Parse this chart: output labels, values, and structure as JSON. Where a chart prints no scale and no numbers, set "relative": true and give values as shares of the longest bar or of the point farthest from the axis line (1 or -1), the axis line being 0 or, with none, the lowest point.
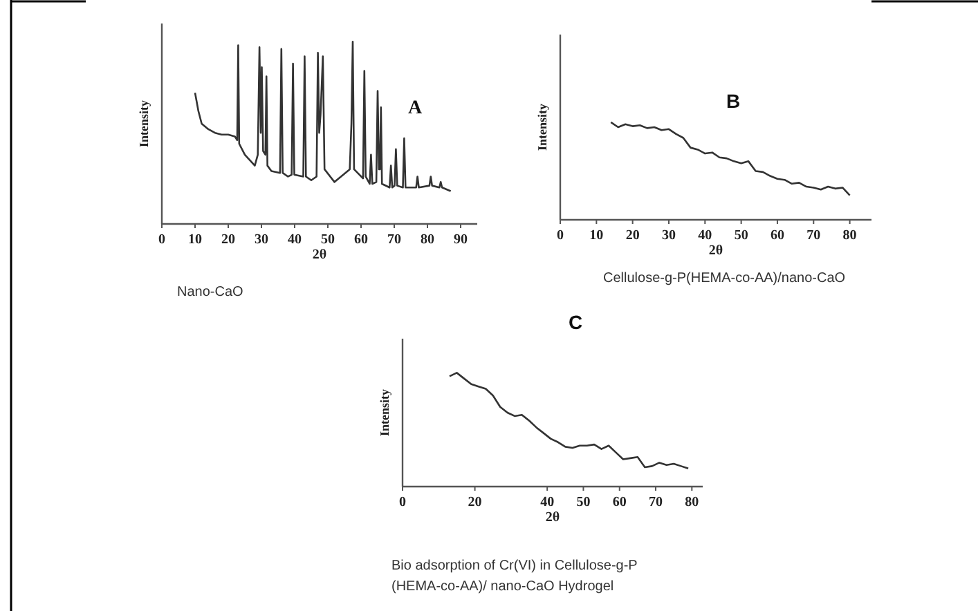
{
  "chart_data": [
    {
      "type": "line",
      "relative": true,
      "xlabel": "2θ",
      "ylabel": "Intensity",
      "xlim": [
        0,
        95
      ],
      "xticks": [
        0,
        10,
        20,
        30,
        40,
        50,
        60,
        70,
        80,
        90
      ],
      "annotations": [
        "A",
        "Nano-CaO"
      ],
      "series": [
        {
          "color": "#333333",
          "x": [
            10,
            11,
            12,
            14,
            16,
            18,
            20,
            22,
            22.7,
            23,
            23.3,
            25,
            27,
            28,
            28.9,
            29.4,
            29.8,
            30.1,
            30.5,
            31.2,
            31.5,
            31.8,
            33,
            35.6,
            36,
            36.4,
            38,
            39.1,
            39.5,
            39.9,
            42.6,
            43,
            43.4,
            45,
            46.6,
            47,
            47.4,
            47.8,
            48.5,
            49,
            52,
            56.6,
            57.1,
            57.5,
            57.9,
            60.6,
            61,
            61.4,
            62.6,
            63,
            63.4,
            64.6,
            65,
            65.4,
            65.7,
            66,
            66.3,
            68.6,
            69,
            69.4,
            70.1,
            70.5,
            70.9,
            72.6,
            73,
            73.4,
            76.6,
            77,
            77.4,
            80.6,
            81,
            81.4,
            83.6,
            84,
            84.4,
            87
          ],
          "values": [
            0.72,
            0.62,
            0.55,
            0.52,
            0.5,
            0.49,
            0.49,
            0.48,
            0.46,
            0.98,
            0.44,
            0.38,
            0.34,
            0.32,
            0.38,
            0.97,
            0.5,
            0.86,
            0.4,
            0.38,
            0.81,
            0.32,
            0.29,
            0.28,
            0.96,
            0.28,
            0.26,
            0.27,
            0.88,
            0.27,
            0.26,
            0.92,
            0.26,
            0.24,
            0.26,
            0.94,
            0.5,
            0.6,
            0.92,
            0.3,
            0.23,
            0.3,
            0.55,
            1,
            0.3,
            0.25,
            0.84,
            0.26,
            0.22,
            0.38,
            0.22,
            0.23,
            0.73,
            0.3,
            0.3,
            0.64,
            0.22,
            0.2,
            0.32,
            0.2,
            0.21,
            0.41,
            0.21,
            0.2,
            0.47,
            0.2,
            0.2,
            0.26,
            0.2,
            0.21,
            0.26,
            0.21,
            0.2,
            0.23,
            0.2,
            0.18
          ]
        }
      ]
    },
    {
      "type": "line",
      "relative": true,
      "xlabel": "2θ",
      "ylabel": "Intensity",
      "xlim": [
        0,
        86
      ],
      "xticks": [
        0,
        10,
        20,
        30,
        40,
        50,
        60,
        70,
        80
      ],
      "annotations": [
        "B",
        "Cellulose-g-P(HEMA-co-AA)/nano-CaO"
      ],
      "series": [
        {
          "color": "#333333",
          "x": [
            14,
            16,
            18,
            20,
            22,
            24,
            26,
            28,
            30,
            32,
            34,
            36,
            38,
            40,
            42,
            44,
            46,
            48,
            50,
            52,
            54,
            56,
            58,
            60,
            62,
            64,
            66,
            68,
            70,
            72,
            74,
            76,
            78,
            80
          ],
          "values": [
            1,
            0.95,
            0.98,
            0.96,
            0.97,
            0.94,
            0.95,
            0.92,
            0.93,
            0.88,
            0.84,
            0.74,
            0.72,
            0.68,
            0.69,
            0.64,
            0.63,
            0.6,
            0.58,
            0.6,
            0.5,
            0.49,
            0.45,
            0.42,
            0.41,
            0.37,
            0.38,
            0.34,
            0.33,
            0.31,
            0.34,
            0.32,
            0.33,
            0.25
          ]
        }
      ]
    },
    {
      "type": "line",
      "relative": true,
      "xlabel": "2θ",
      "ylabel": "Intensity",
      "xlim": [
        0,
        83
      ],
      "xticks": [
        0,
        20,
        40,
        50,
        60,
        70,
        80
      ],
      "annotations": [
        "C",
        "Bio adsorption of Cr(VI) in Cellulose-g-P\n(HEMA-co-AA)/ nano-CaO Hydrogel"
      ],
      "series": [
        {
          "color": "#333333",
          "x": [
            13,
            15,
            17,
            19,
            21,
            23,
            25,
            27,
            29,
            31,
            33,
            35,
            37,
            39,
            41,
            43,
            45,
            47,
            49,
            51,
            53,
            55,
            57,
            59,
            61,
            63,
            65,
            67,
            69,
            71,
            73,
            75,
            77,
            79
          ],
          "values": [
            0.97,
            1,
            0.95,
            0.9,
            0.88,
            0.86,
            0.8,
            0.7,
            0.65,
            0.62,
            0.63,
            0.58,
            0.52,
            0.47,
            0.42,
            0.39,
            0.35,
            0.34,
            0.36,
            0.36,
            0.37,
            0.33,
            0.36,
            0.3,
            0.24,
            0.25,
            0.26,
            0.17,
            0.18,
            0.21,
            0.19,
            0.2,
            0.18,
            0.16
          ]
        }
      ]
    }
  ]
}
